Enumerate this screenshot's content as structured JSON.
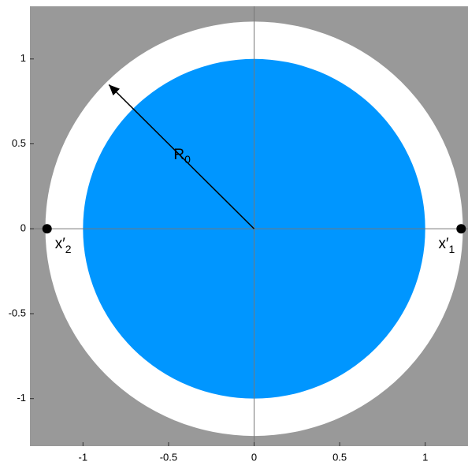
{
  "chart_data": {
    "type": "circles",
    "background": "#999999",
    "xlim": [
      -1.31,
      1.25
    ],
    "ylim": [
      -1.28,
      1.31
    ],
    "xticks": [
      -1,
      -0.5,
      0,
      0.5,
      1
    ],
    "yticks": [
      -1,
      -0.5,
      0,
      0.5,
      1
    ],
    "circles": [
      {
        "radius": 1.22,
        "color": "#ffffff"
      },
      {
        "radius": 1,
        "color": "#0096ff"
      }
    ],
    "points": {
      "x": [
        1.21,
        -1.21
      ],
      "y": [
        0,
        0
      ],
      "color": "#000000",
      "labels": [
        {
          "text": "x′",
          "sub": "1"
        },
        {
          "text": "x′",
          "sub": "2"
        }
      ]
    },
    "arrow": {
      "length": 1.2,
      "angle": 135,
      "label": {
        "text": "R",
        "sub": "0"
      }
    }
  }
}
